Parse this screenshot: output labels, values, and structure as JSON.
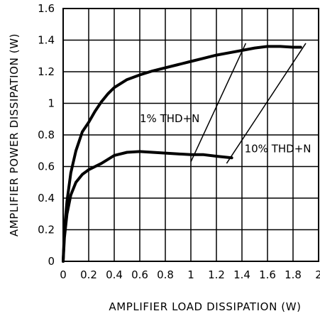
{
  "chart_data": {
    "type": "line",
    "xlabel": "AMPLIFIER LOAD DISSIPATION (W)",
    "ylabel": "AMPLIFIER POWER DISSIPATION (W)",
    "xlim": [
      0,
      2
    ],
    "ylim": [
      0,
      1.6
    ],
    "x_ticks": [
      "0",
      "0.2",
      "0.4",
      "0.6",
      "0.8",
      "1",
      "1.2",
      "1.4",
      "1.6",
      "1.8",
      "2"
    ],
    "y_ticks": [
      "0",
      "0.2",
      "0.4",
      "0.6",
      "0.8",
      "1",
      "1.2",
      "1.4",
      "1.6"
    ],
    "grid": true,
    "series": [
      {
        "points": [
          [
            0,
            0
          ],
          [
            0.01,
            0.15
          ],
          [
            0.03,
            0.3
          ],
          [
            0.06,
            0.42
          ],
          [
            0.1,
            0.5
          ],
          [
            0.15,
            0.55
          ],
          [
            0.2,
            0.58
          ],
          [
            0.3,
            0.62
          ],
          [
            0.4,
            0.67
          ],
          [
            0.5,
            0.69
          ],
          [
            0.6,
            0.695
          ],
          [
            0.7,
            0.69
          ],
          [
            0.8,
            0.685
          ],
          [
            0.9,
            0.68
          ],
          [
            1.0,
            0.675
          ],
          [
            1.1,
            0.675
          ],
          [
            1.2,
            0.665
          ],
          [
            1.32,
            0.655
          ]
        ]
      },
      {
        "points": [
          [
            0,
            0
          ],
          [
            0.01,
            0.2
          ],
          [
            0.03,
            0.38
          ],
          [
            0.06,
            0.56
          ],
          [
            0.1,
            0.7
          ],
          [
            0.15,
            0.82
          ],
          [
            0.2,
            0.88
          ],
          [
            0.25,
            0.95
          ],
          [
            0.3,
            1.01
          ],
          [
            0.35,
            1.06
          ],
          [
            0.4,
            1.1
          ],
          [
            0.5,
            1.15
          ],
          [
            0.6,
            1.18
          ],
          [
            0.7,
            1.205
          ],
          [
            0.8,
            1.225
          ],
          [
            0.9,
            1.245
          ],
          [
            1.0,
            1.265
          ],
          [
            1.1,
            1.285
          ],
          [
            1.2,
            1.305
          ],
          [
            1.3,
            1.32
          ],
          [
            1.4,
            1.335
          ],
          [
            1.5,
            1.35
          ],
          [
            1.6,
            1.36
          ],
          [
            1.7,
            1.36
          ],
          [
            1.8,
            1.355
          ],
          [
            1.86,
            1.355
          ]
        ]
      }
    ],
    "annotations": [
      {
        "text": "1% THD+N",
        "x": 0.6,
        "y": 0.88,
        "line": [
          [
            1.0,
            0.63
          ],
          [
            1.43,
            1.38
          ]
        ]
      },
      {
        "text": "10% THD+N",
        "x": 1.42,
        "y": 0.69,
        "line": [
          [
            1.28,
            0.62
          ],
          [
            1.9,
            1.38
          ]
        ]
      }
    ]
  }
}
